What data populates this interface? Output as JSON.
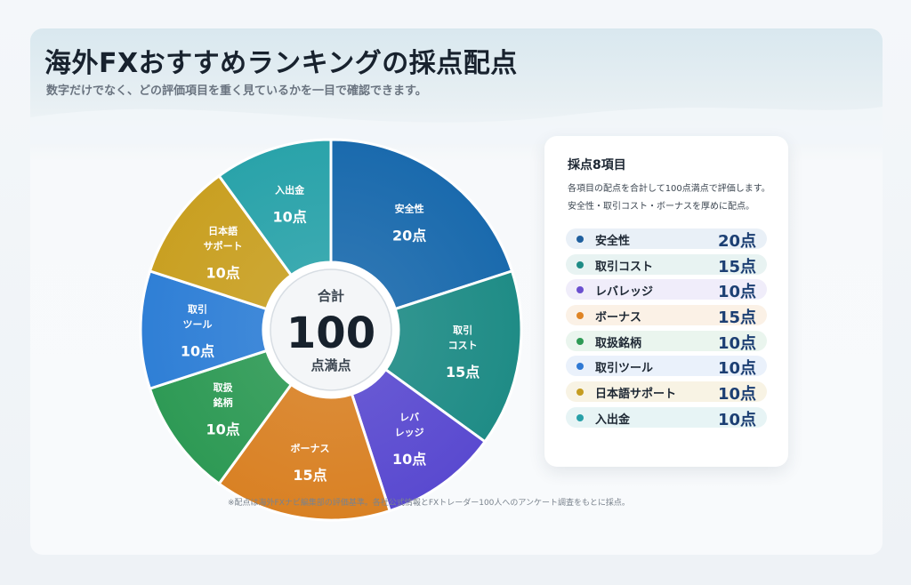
{
  "title": "海外FXおすすめランキングの採点配点",
  "subtitle": "数字だけでなく、どの評価項目を重く見ているかを一目で確認できます。",
  "footnote": "※配点は海外FXナビ編集部の評価基準。各社公式情報とFXトレーダー100人へのアンケート調査をもとに採点。",
  "center": {
    "top": "合計",
    "value": "100",
    "bottom": "点満点"
  },
  "panel": {
    "title": "採点8項目",
    "desc_line1": "各項目の配点を合計して100点満点で評価します。",
    "desc_line2": "安全性・取引コスト・ボーナスを厚めに配点。"
  },
  "chart_data": {
    "type": "pie",
    "unit": "点",
    "total": 100,
    "slices": [
      {
        "name": "安全性",
        "value": 20,
        "value_label": "20点",
        "slice_lines": [
          "安全性"
        ],
        "color": "#1a6aad",
        "legend_dot": "#1f5f9e",
        "legend_bg": "#e9f0f7"
      },
      {
        "name": "取引コスト",
        "value": 15,
        "value_label": "15点",
        "slice_lines": [
          "取引",
          "コスト"
        ],
        "color": "#1f8c86",
        "legend_dot": "#1f8c86",
        "legend_bg": "#e8f3f2"
      },
      {
        "name": "レバレッジ",
        "value": 10,
        "value_label": "10点",
        "slice_lines": [
          "レバ",
          "レッジ"
        ],
        "color": "#5a4ad0",
        "legend_dot": "#6a4fcf",
        "legend_bg": "#f0edfa"
      },
      {
        "name": "ボーナス",
        "value": 15,
        "value_label": "15点",
        "slice_lines": [
          "ボーナス"
        ],
        "color": "#d98124",
        "legend_dot": "#df8424",
        "legend_bg": "#fbf1e6"
      },
      {
        "name": "取扱銘柄",
        "value": 10,
        "value_label": "10点",
        "slice_lines": [
          "取扱",
          "銘柄"
        ],
        "color": "#2e9a55",
        "legend_dot": "#2e9a55",
        "legend_bg": "#eaf5ee"
      },
      {
        "name": "取引ツール",
        "value": 10,
        "value_label": "10点",
        "slice_lines": [
          "取引",
          "ツール"
        ],
        "color": "#2f7fd6",
        "legend_dot": "#2f79d4",
        "legend_bg": "#eaf1fb"
      },
      {
        "name": "日本語サポート",
        "value": 10,
        "value_label": "10点",
        "slice_lines": [
          "日本語",
          "サポート"
        ],
        "color": "#c9a022",
        "legend_dot": "#c59c20",
        "legend_bg": "#f8f3e4"
      },
      {
        "name": "入出金",
        "value": 10,
        "value_label": "10点",
        "slice_lines": [
          "入出金"
        ],
        "color": "#2aa3aa",
        "legend_dot": "#27a0a8",
        "legend_bg": "#e7f4f5"
      }
    ]
  }
}
